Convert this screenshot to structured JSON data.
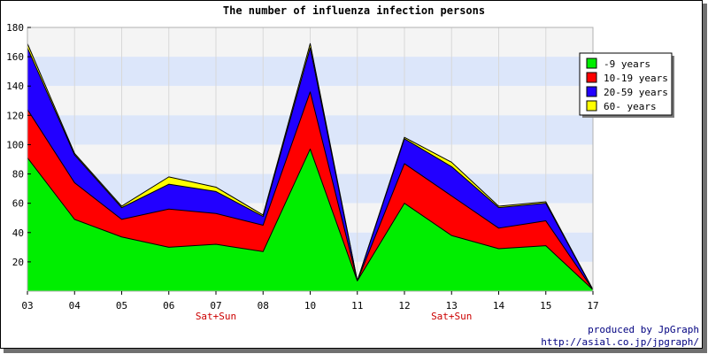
{
  "chart_data": {
    "type": "area",
    "stacked": true,
    "title": "The number of influenza infection persons",
    "categories": [
      "03",
      "04",
      "05",
      "06",
      "07",
      "08",
      "10",
      "11",
      "12",
      "13",
      "14",
      "15",
      "17"
    ],
    "category_sublabels": [
      "",
      "",
      "",
      "",
      "Sat+Sun",
      "",
      "",
      "",
      "",
      "Sat+Sun",
      "",
      "",
      ""
    ],
    "ylim": [
      0,
      180
    ],
    "yticks": [
      20,
      40,
      60,
      80,
      100,
      120,
      140,
      160,
      180
    ],
    "grid": true,
    "legend_position": "top-right",
    "series": [
      {
        "name": "-9 years",
        "color": "#00ee00",
        "values": [
          91,
          49,
          37,
          30,
          32,
          27,
          97,
          7,
          60,
          38,
          29,
          31,
          1
        ]
      },
      {
        "name": "10-19 years",
        "color": "#ff0000",
        "values": [
          33,
          25,
          12,
          26,
          21,
          18,
          39,
          0,
          27,
          27,
          14,
          17,
          0
        ]
      },
      {
        "name": "20-59 years",
        "color": "#2200ff",
        "values": [
          42,
          19,
          8,
          17,
          15,
          6,
          30,
          0,
          17,
          20,
          14,
          12,
          0
        ]
      },
      {
        "name": "60- years",
        "color": "#ffff00",
        "values": [
          3,
          1,
          1,
          5,
          3,
          1,
          3,
          0,
          1,
          3,
          1,
          1,
          0
        ]
      }
    ]
  },
  "colors": {
    "band_light": "#f4f4f4",
    "band_blue": "#dce6fa",
    "sublabel": "#cc0000",
    "credit": "#000080"
  },
  "credit": {
    "line1": "produced by JpGraph",
    "line2": "http://asial.co.jp/jpgraph/"
  }
}
